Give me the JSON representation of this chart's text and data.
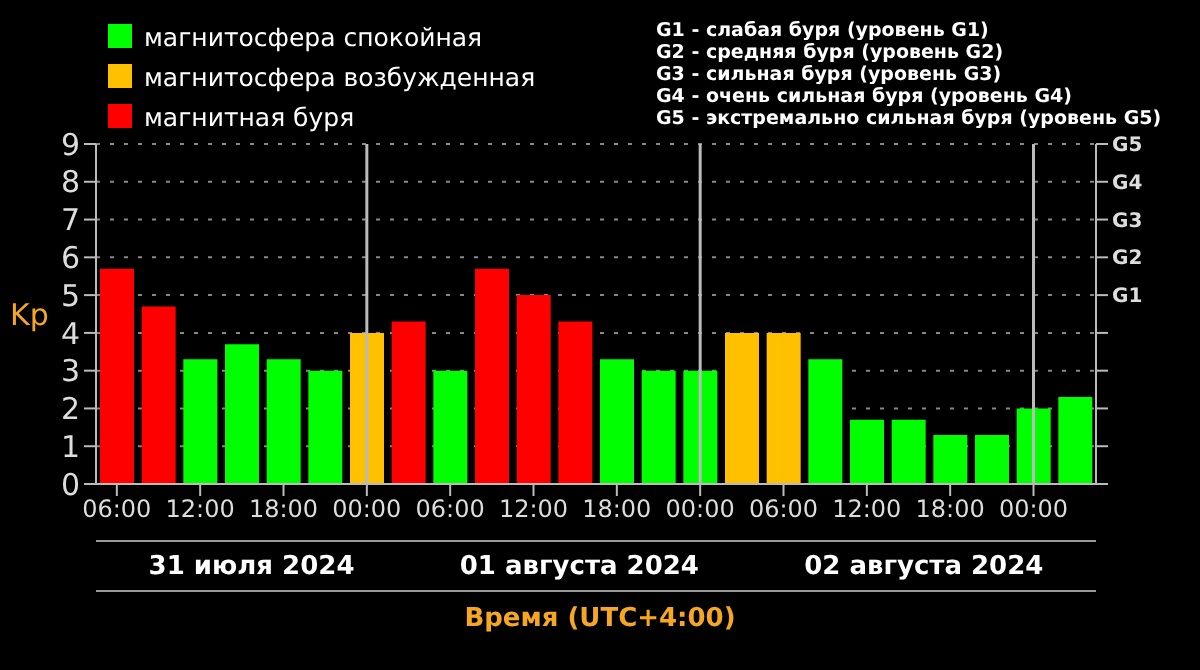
{
  "chart_data": {
    "type": "bar",
    "stacked": true,
    "ylabel": "Kp",
    "xlabel": "Время (UTC+4:00)",
    "x": [
      "2024-07-31T06:00",
      "2024-07-31T09:00",
      "2024-07-31T12:00",
      "2024-07-31T15:00",
      "2024-07-31T18:00",
      "2024-07-31T21:00",
      "2024-08-01T00:00",
      "2024-08-01T03:00",
      "2024-08-01T06:00",
      "2024-08-01T09:00",
      "2024-08-01T12:00",
      "2024-08-01T15:00",
      "2024-08-01T18:00",
      "2024-08-01T21:00",
      "2024-08-02T00:00",
      "2024-08-02T03:00",
      "2024-08-02T06:00",
      "2024-08-02T09:00",
      "2024-08-02T12:00",
      "2024-08-02T15:00",
      "2024-08-02T18:00",
      "2024-08-02T21:00",
      "2024-08-03T00:00",
      "2024-08-03T03:00"
    ],
    "series": [
      {
        "name": "магнитосфера спокойная",
        "color": "#00ff00",
        "values": [
          null,
          null,
          3.3,
          3.7,
          3.3,
          3.0,
          null,
          null,
          3.0,
          null,
          null,
          null,
          3.3,
          3.0,
          3.0,
          null,
          null,
          3.3,
          1.7,
          1.7,
          1.3,
          1.3,
          2.0,
          2.3
        ]
      },
      {
        "name": "магнитосфера возбужденная",
        "color": "#ffc000",
        "values": [
          null,
          null,
          null,
          null,
          null,
          null,
          4.0,
          null,
          null,
          null,
          null,
          null,
          null,
          null,
          null,
          4.0,
          4.0,
          null,
          null,
          null,
          null,
          null,
          null,
          null
        ]
      },
      {
        "name": "магнитная буря",
        "color": "#ff0000",
        "values": [
          5.7,
          4.7,
          null,
          null,
          null,
          null,
          null,
          4.3,
          null,
          5.7,
          5.0,
          4.3,
          null,
          null,
          null,
          null,
          null,
          null,
          null,
          null,
          null,
          null,
          null,
          null
        ]
      }
    ],
    "xlim": [
      "2024-07-31T04:30",
      "2024-08-03T04:30"
    ],
    "xticks": [
      {
        "value": "2024-07-31T06:00",
        "label": "06:00"
      },
      {
        "value": "2024-07-31T12:00",
        "label": "12:00"
      },
      {
        "value": "2024-07-31T18:00",
        "label": "18:00"
      },
      {
        "value": "2024-08-01T00:00",
        "label": "00:00"
      },
      {
        "value": "2024-08-01T06:00",
        "label": "06:00"
      },
      {
        "value": "2024-08-01T12:00",
        "label": "12:00"
      },
      {
        "value": "2024-08-01T18:00",
        "label": "18:00"
      },
      {
        "value": "2024-08-02T00:00",
        "label": "00:00"
      },
      {
        "value": "2024-08-02T06:00",
        "label": "06:00"
      },
      {
        "value": "2024-08-02T12:00",
        "label": "12:00"
      },
      {
        "value": "2024-08-02T18:00",
        "label": "18:00"
      },
      {
        "value": "2024-08-03T00:00",
        "label": "00:00"
      }
    ],
    "ylim": [
      0,
      9
    ],
    "yticks": [
      0,
      1,
      2,
      3,
      4,
      5,
      6,
      7,
      8,
      9
    ],
    "ref_lines": [
      {
        "axis": "x",
        "value": "2024-08-01T00:00",
        "color": "#bbbbbb"
      },
      {
        "axis": "x",
        "value": "2024-08-02T00:00",
        "color": "#bbbbbb"
      },
      {
        "axis": "x",
        "value": "2024-08-03T00:00",
        "color": "#bbbbbb"
      }
    ],
    "grid": "y",
    "legend": "top left",
    "annotations": [
      "31 июля 2024",
      "01 августа 2024",
      "02 августа 2024",
      "G1 - слабая буря (уровень G1)",
      "G2 - средняя буря (уровень G2)",
      "G3 - сильная буря (уровень G3)",
      "G4 - очень сильная буря (уровень G4)",
      "G5 - экстремально сильная буря (уровень G5)",
      "G1",
      "G2",
      "G3",
      "G4",
      "G5"
    ]
  }
}
